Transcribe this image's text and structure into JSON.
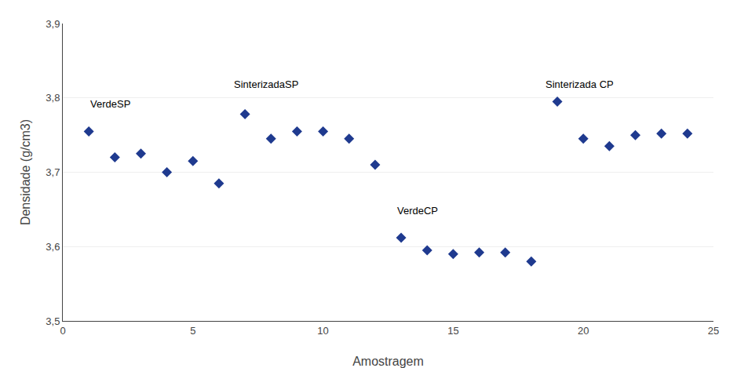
{
  "chart_data": {
    "type": "scatter",
    "x": [
      1,
      2,
      3,
      4,
      5,
      6,
      7,
      8,
      9,
      10,
      11,
      12,
      13,
      14,
      15,
      16,
      17,
      18,
      19,
      20,
      21,
      22,
      23,
      24
    ],
    "values": [
      3.755,
      3.72,
      3.725,
      3.7,
      3.715,
      3.685,
      3.778,
      3.745,
      3.755,
      3.755,
      3.745,
      3.71,
      3.612,
      3.595,
      3.59,
      3.592,
      3.592,
      3.58,
      3.795,
      3.745,
      3.735,
      3.75,
      3.752,
      3.752
    ],
    "color": "#1F3A8F",
    "marker": "diamond",
    "xlabel": "Amostragem",
    "ylabel": "Densidade (g/cm3)",
    "xlim": [
      0,
      25
    ],
    "ylim": [
      3.5,
      3.9
    ],
    "xticks": [
      0,
      5,
      10,
      15,
      20,
      25
    ],
    "yticks": [
      {
        "value": 3.5,
        "label": "3,5"
      },
      {
        "value": 3.6,
        "label": "3,6"
      },
      {
        "value": 3.7,
        "label": "3,7"
      },
      {
        "value": 3.8,
        "label": "3,8"
      },
      {
        "value": 3.9,
        "label": "3,9"
      }
    ],
    "grid": "y",
    "annotations": [
      {
        "text": "VerdeSP",
        "x": 1.0,
        "y": 3.782
      },
      {
        "text": "SinterizadaSP",
        "x": 6.5,
        "y": 3.808
      },
      {
        "text": "VerdeCP",
        "x": 12.8,
        "y": 3.638
      },
      {
        "text": "Sinterizada CP",
        "x": 18.5,
        "y": 3.808
      }
    ]
  }
}
